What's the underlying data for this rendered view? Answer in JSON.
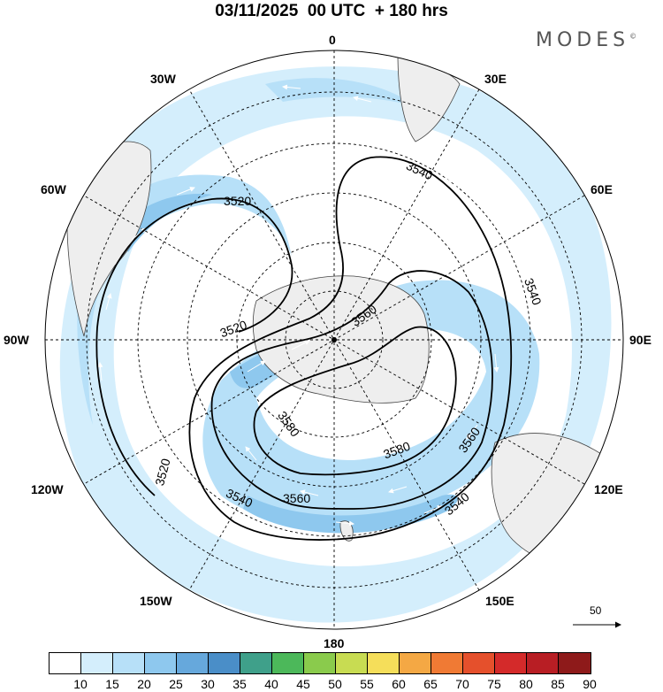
{
  "header": {
    "title": "03/11/2025  00 UTC  + 180 hrs",
    "brand": "MODES",
    "brand_mark": "©"
  },
  "map": {
    "projection": "polar stereographic, south pole",
    "longitude_labels": {
      "top": "0",
      "upper_right": "30E",
      "right_upper": "60E",
      "right": "90E",
      "right_lower": "120E",
      "lower_right": "150E",
      "bottom": "180",
      "lower_left": "150W",
      "left_lower": "120W",
      "left": "90W",
      "left_upper": "60W",
      "upper_left": "30W"
    },
    "contour_labels": [
      "3520",
      "3520",
      "3520",
      "3540",
      "3540",
      "3540",
      "3540",
      "3560",
      "3560",
      "3560",
      "3580",
      "3580"
    ],
    "reference_vector": {
      "label": "50"
    }
  },
  "colorbar": {
    "labels": [
      "10",
      "15",
      "20",
      "25",
      "30",
      "35",
      "40",
      "45",
      "50",
      "55",
      "60",
      "65",
      "70",
      "75",
      "80",
      "85",
      "90"
    ],
    "colors": [
      "#ffffff",
      "#d4eefc",
      "#b7e0f8",
      "#8ec8ee",
      "#66a8dc",
      "#4a8ec8",
      "#3fa08a",
      "#4cb85a",
      "#8acb4c",
      "#c8dc52",
      "#f5de5a",
      "#f4a844",
      "#f07a34",
      "#e5502c",
      "#d42a2a",
      "#b81e24",
      "#8e1a1a"
    ]
  }
}
